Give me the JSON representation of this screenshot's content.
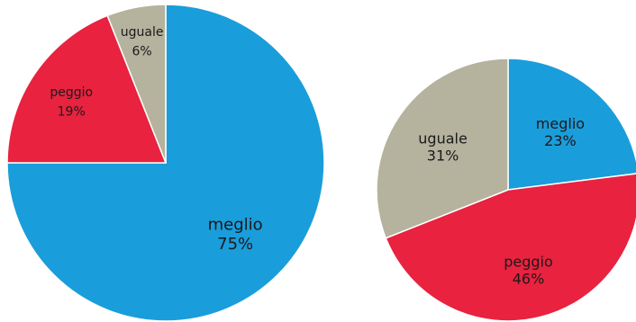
{
  "chart_data": [
    {
      "type": "pie",
      "slices": [
        {
          "label": "meglio",
          "value": 75,
          "value_label": "75%",
          "color": "#1a9ddb"
        },
        {
          "label": "peggio",
          "value": 19,
          "value_label": "19%",
          "color": "#e8223f"
        },
        {
          "label": "uguale",
          "value": 6,
          "value_label": "6%",
          "color": "#b5b29e"
        }
      ]
    },
    {
      "type": "pie",
      "slices": [
        {
          "label": "meglio",
          "value": 23,
          "value_label": "23%",
          "color": "#1a9ddb"
        },
        {
          "label": "peggio",
          "value": 46,
          "value_label": "46%",
          "color": "#e8223f"
        },
        {
          "label": "uguale",
          "value": 31,
          "value_label": "31%",
          "color": "#b5b29e"
        }
      ]
    }
  ]
}
